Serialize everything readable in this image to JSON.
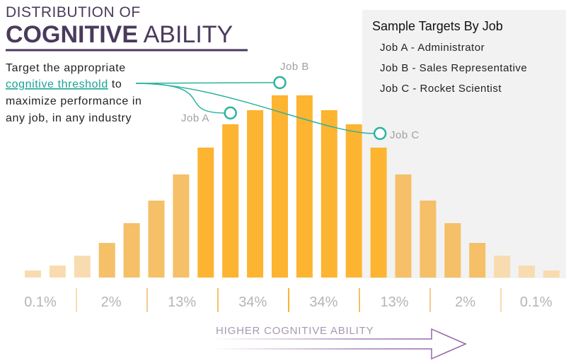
{
  "chart_data": {
    "type": "bar",
    "title_line1": "DISTRIBUTION OF",
    "title_bold": "COGNITIVE",
    "title_rest": "ABILITY",
    "description": {
      "line1": "Target the appropriate",
      "link": "cognitive threshold",
      "link_rest": "to",
      "line3": "maximize performance in",
      "line4": "any job, in any industry"
    },
    "values": [
      10,
      17,
      31,
      49,
      77,
      109,
      146,
      184,
      217,
      237,
      258,
      258,
      237,
      217,
      184,
      146,
      109,
      77,
      49,
      31,
      17,
      10
    ],
    "colors": [
      "#f8dcb0",
      "#f8dcb0",
      "#f8dcb0",
      "#f5c068",
      "#f5c068",
      "#f5c068",
      "#f5c068",
      "#fdb431",
      "#fdb431",
      "#fdb431",
      "#fdb431",
      "#fdb431",
      "#fdb431",
      "#fdb431",
      "#fdb431",
      "#f5c068",
      "#f5c068",
      "#f5c068",
      "#f5c068",
      "#f8dcb0",
      "#f8dcb0",
      "#f8dcb0"
    ],
    "segment_labels": [
      "0.1%",
      "2%",
      "13%",
      "34%",
      "34%",
      "13%",
      "2%",
      "0.1%"
    ],
    "axis_label": "HIGHER COGNITIVE ABILITY",
    "legend": {
      "title": "Sample Targets By Job",
      "items": [
        "Job A - Administrator",
        "Job B - Sales Representative",
        "Job C - Rocket Scientist"
      ]
    },
    "annotations": [
      "Job A",
      "Job B",
      "Job C"
    ]
  }
}
